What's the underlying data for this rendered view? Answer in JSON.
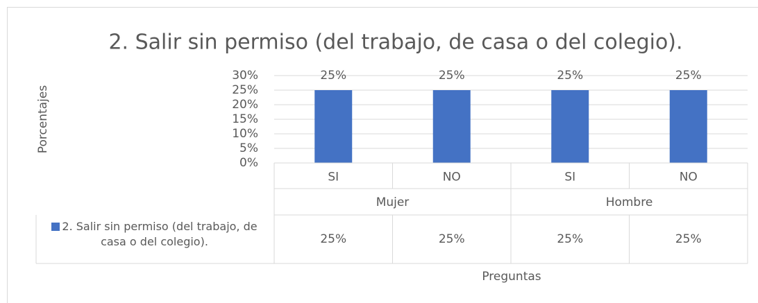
{
  "chart_data": {
    "type": "bar",
    "title": "2. Salir sin permiso (del trabajo, de casa o del colegio).",
    "ylabel": "Porcentajes",
    "xlabel": "Preguntas",
    "categories": [
      "SI",
      "NO",
      "SI",
      "NO"
    ],
    "groups": [
      "Mujer",
      "Hombre"
    ],
    "series": [
      {
        "name": "2. Salir sin permiso (del trabajo, de casa o del colegio).",
        "color": "#4472c4",
        "values": [
          25,
          25,
          25,
          25
        ],
        "value_labels": [
          "25%",
          "25%",
          "25%",
          "25%"
        ]
      }
    ],
    "ylim": [
      0,
      30
    ],
    "yticks": [
      {
        "value": 0,
        "label": "0%"
      },
      {
        "value": 5,
        "label": "5%"
      },
      {
        "value": 10,
        "label": "10%"
      },
      {
        "value": 15,
        "label": "15%"
      },
      {
        "value": 20,
        "label": "20%"
      },
      {
        "value": 25,
        "label": "25%"
      },
      {
        "value": 30,
        "label": "30%"
      }
    ],
    "grid": true,
    "data_table": true
  }
}
